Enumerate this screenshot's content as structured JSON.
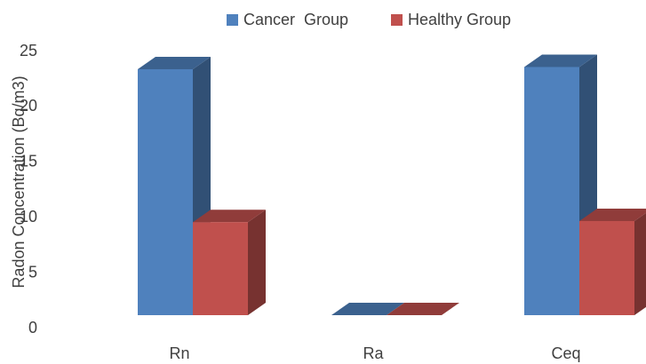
{
  "chart_data": {
    "type": "bar3d",
    "y_label": "Radon Concentration (Bq/m3)",
    "categories": [
      "Rn",
      "Ra",
      "Ceq"
    ],
    "series": [
      {
        "name": "Cancer  Group",
        "color": "#4f81bd",
        "values": [
          23.4,
          1.2,
          23.6
        ]
      },
      {
        "name": "Healthy Group",
        "color": "#c0504d",
        "values": [
          9.6,
          1.0,
          9.7
        ]
      }
    ],
    "ylim": [
      0,
      25
    ],
    "yticks": [
      0,
      5,
      10,
      15,
      20,
      25
    ],
    "grid": false,
    "legend": "top"
  }
}
